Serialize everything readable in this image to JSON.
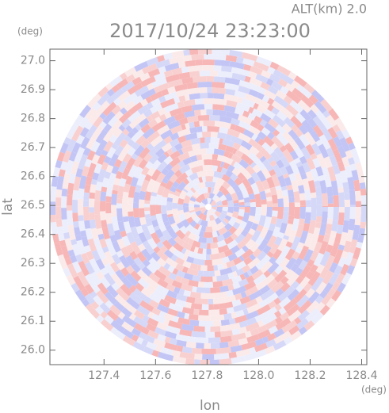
{
  "chart_data": {
    "type": "radar-ppi",
    "title": "2017/10/24 23:23:00",
    "subtitle": "ALT(km) 2.0",
    "y_unit": "(deg)",
    "x_unit": "(deg)",
    "x_label": "lon",
    "y_label": "lat",
    "xlim": [
      127.19,
      128.42
    ],
    "ylim": [
      25.95,
      27.04
    ],
    "xticks": [
      127.4,
      127.6,
      127.8,
      {
        "value": 128,
        "label": "128.0"
      },
      128.2,
      128.4
    ],
    "yticks": [
      {
        "value": 26,
        "label": "26.0"
      },
      26.1,
      26.2,
      26.3,
      26.4,
      26.5,
      26.6,
      26.7,
      26.8,
      26.9,
      {
        "value": 27,
        "label": "27.0"
      }
    ]
  }
}
